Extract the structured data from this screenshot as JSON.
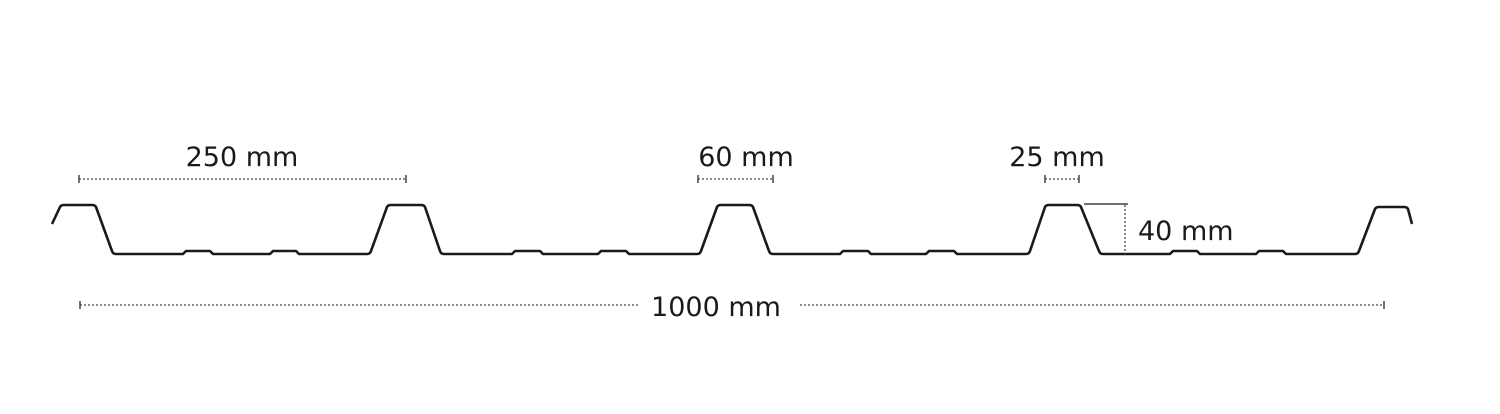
{
  "diagram": {
    "labels": {
      "pitch": "250 mm",
      "rib_top": "60 mm",
      "rib_crest": "25 mm",
      "rib_height": "40 mm",
      "cover_width": "1000 mm"
    },
    "colors": {
      "profile": "#1a1a1a",
      "dimension": "#444444"
    }
  }
}
